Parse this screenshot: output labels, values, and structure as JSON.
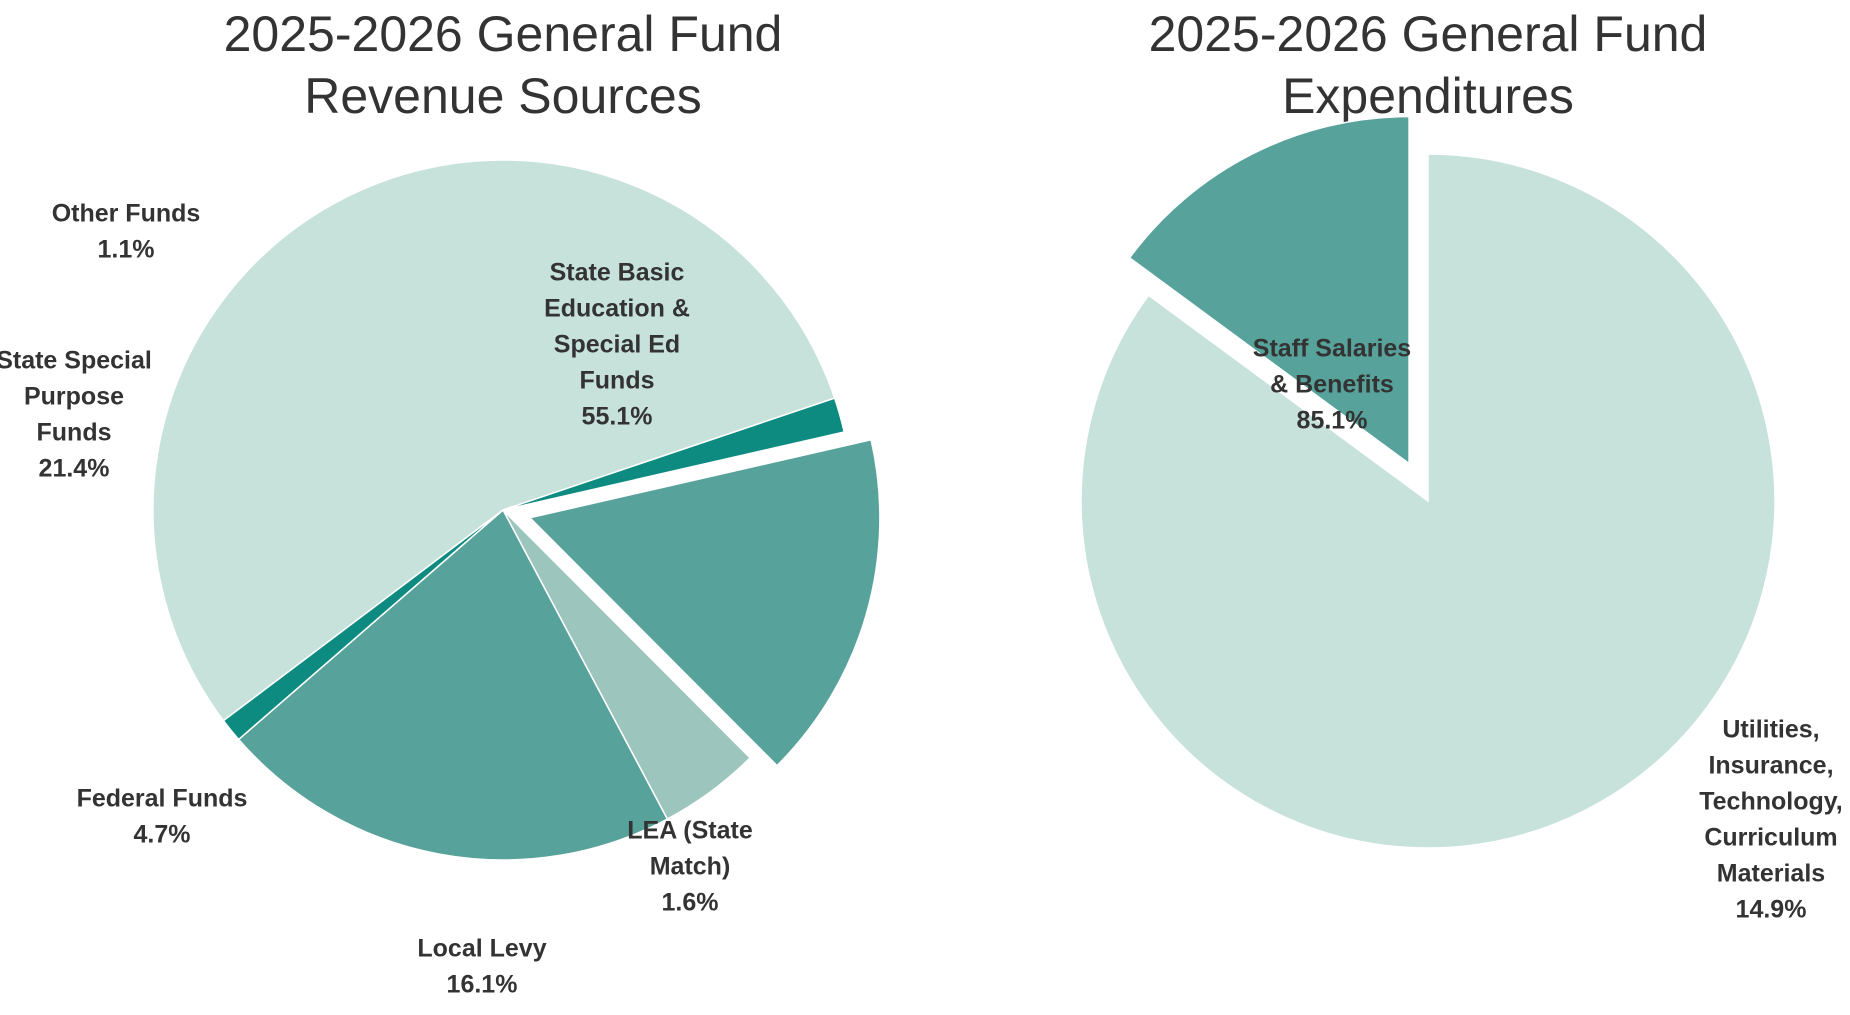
{
  "chart_data": [
    {
      "type": "pie",
      "title_lines": [
        "2025-2026 General Fund",
        "Revenue Sources"
      ],
      "colors": {
        "light": "#c7e1db",
        "medium": "#57a29a",
        "pale": "#9cc6bd",
        "dark": "#0e8b80"
      },
      "slices": [
        {
          "label_lines": [
            "State Basic",
            "Education &",
            "Special Ed",
            "Funds"
          ],
          "value": 55.1,
          "value_label": "55.1%",
          "color": "#c7e1db"
        },
        {
          "label_lines": [
            "LEA (State",
            "Match)"
          ],
          "value": 1.6,
          "value_label": "1.6%",
          "color": "#0e8b80"
        },
        {
          "label_lines": [
            "Local Levy"
          ],
          "value": 16.1,
          "value_label": "16.1%",
          "color": "#57a29a",
          "exploded": true
        },
        {
          "label_lines": [
            "Federal Funds"
          ],
          "value": 4.7,
          "value_label": "4.7%",
          "color": "#9cc6bd"
        },
        {
          "label_lines": [
            "State Special",
            "Purpose",
            "Funds"
          ],
          "value": 21.4,
          "value_label": "21.4%",
          "color": "#57a29a"
        },
        {
          "label_lines": [
            "Other Funds"
          ],
          "value": 1.1,
          "value_label": "1.1%",
          "color": "#0e8b80"
        }
      ]
    },
    {
      "type": "pie",
      "title_lines": [
        "2025-2026 General Fund",
        "Expenditures"
      ],
      "slices": [
        {
          "label_lines": [
            "Staff Salaries",
            "& Benefits"
          ],
          "value": 85.1,
          "value_label": "85.1%",
          "color": "#c7e1db"
        },
        {
          "label_lines": [
            "Utilities,",
            "Insurance,",
            "Technology,",
            "Curriculum",
            "Materials"
          ],
          "value": 14.9,
          "value_label": "14.9%",
          "color": "#57a29a",
          "exploded": true
        }
      ]
    }
  ]
}
